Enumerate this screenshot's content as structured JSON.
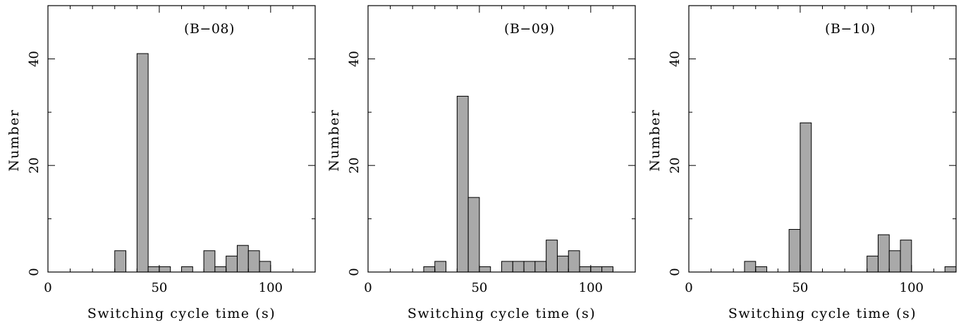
{
  "chart_data": [
    {
      "type": "bar",
      "title": "(B−08)",
      "xlabel": "Switching cycle time (s)",
      "ylabel": "Number",
      "xlim": [
        0,
        120
      ],
      "ylim": [
        0,
        50
      ],
      "xticks": [
        0,
        50,
        100
      ],
      "yticks": [
        0,
        20,
        40
      ],
      "bin_width": 5,
      "bins": [
        {
          "x": 32.5,
          "value": 4
        },
        {
          "x": 42.5,
          "value": 41
        },
        {
          "x": 47.5,
          "value": 1
        },
        {
          "x": 52.5,
          "value": 1
        },
        {
          "x": 62.5,
          "value": 1
        },
        {
          "x": 72.5,
          "value": 4
        },
        {
          "x": 77.5,
          "value": 1
        },
        {
          "x": 82.5,
          "value": 3
        },
        {
          "x": 87.5,
          "value": 5
        },
        {
          "x": 92.5,
          "value": 4
        },
        {
          "x": 97.5,
          "value": 2
        }
      ]
    },
    {
      "type": "bar",
      "title": "(B−09)",
      "xlabel": "Switching cycle time (s)",
      "ylabel": "Number",
      "xlim": [
        0,
        120
      ],
      "ylim": [
        0,
        50
      ],
      "xticks": [
        0,
        50,
        100
      ],
      "yticks": [
        0,
        20,
        40
      ],
      "bin_width": 5,
      "bins": [
        {
          "x": 27.5,
          "value": 1
        },
        {
          "x": 32.5,
          "value": 2
        },
        {
          "x": 42.5,
          "value": 33
        },
        {
          "x": 47.5,
          "value": 14
        },
        {
          "x": 52.5,
          "value": 1
        },
        {
          "x": 62.5,
          "value": 2
        },
        {
          "x": 67.5,
          "value": 2
        },
        {
          "x": 72.5,
          "value": 2
        },
        {
          "x": 77.5,
          "value": 2
        },
        {
          "x": 82.5,
          "value": 6
        },
        {
          "x": 87.5,
          "value": 3
        },
        {
          "x": 92.5,
          "value": 4
        },
        {
          "x": 97.5,
          "value": 1
        },
        {
          "x": 102.5,
          "value": 1
        },
        {
          "x": 107.5,
          "value": 1
        }
      ]
    },
    {
      "type": "bar",
      "title": "(B−10)",
      "xlabel": "Switching cycle time (s)",
      "ylabel": "Number",
      "xlim": [
        0,
        120
      ],
      "ylim": [
        0,
        50
      ],
      "xticks": [
        0,
        50,
        100
      ],
      "yticks": [
        0,
        20,
        40
      ],
      "bin_width": 5,
      "bins": [
        {
          "x": 27.5,
          "value": 2
        },
        {
          "x": 32.5,
          "value": 1
        },
        {
          "x": 47.5,
          "value": 8
        },
        {
          "x": 52.5,
          "value": 28
        },
        {
          "x": 82.5,
          "value": 3
        },
        {
          "x": 87.5,
          "value": 7
        },
        {
          "x": 92.5,
          "value": 4
        },
        {
          "x": 97.5,
          "value": 6
        },
        {
          "x": 117.5,
          "value": 1
        }
      ]
    }
  ]
}
